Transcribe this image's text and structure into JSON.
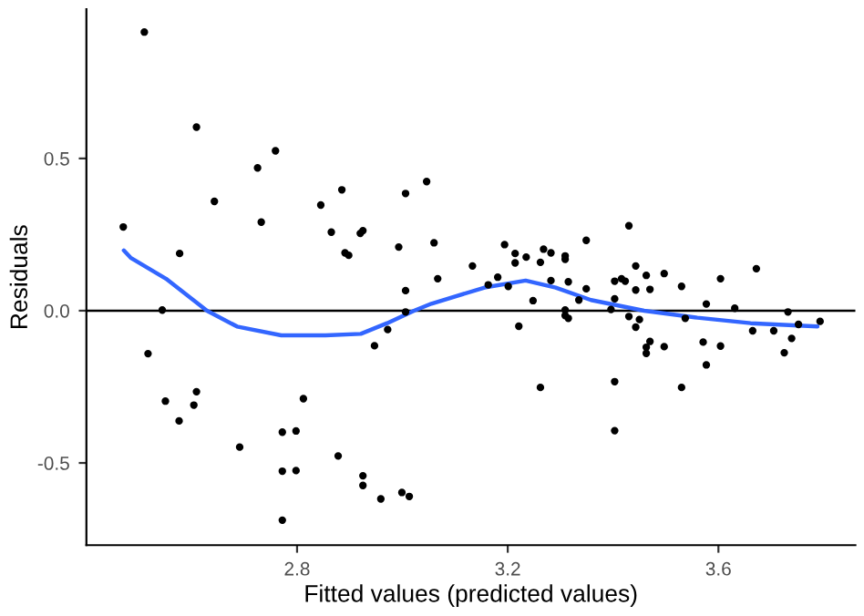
{
  "chart_data": {
    "type": "scatter",
    "xlabel": "Fitted values (predicted values)",
    "ylabel": "Residuals",
    "xlim": [
      2.4,
      3.86
    ],
    "ylim": [
      -0.77,
      0.99
    ],
    "xticks": [
      2.8,
      3.2,
      3.6
    ],
    "yticks": [
      {
        "value": -0.5,
        "label": "-0.5"
      },
      {
        "value": 0,
        "label": "0.0"
      },
      0.5
    ],
    "grid": false,
    "legend": false,
    "marker": "circle",
    "ref_lines": [
      {
        "axis": "y",
        "value": 0,
        "color": "#000000",
        "line_style": "solid"
      }
    ],
    "series": [
      {
        "color": "#000000",
        "x": [
          2.47,
          2.51,
          2.609,
          2.643,
          2.577,
          2.725,
          2.759,
          2.732,
          2.845,
          2.885,
          2.865,
          2.891,
          2.898,
          2.92,
          2.925,
          2.993,
          3.006,
          3.046,
          3.06,
          3.067,
          3.006,
          2.544,
          2.517,
          2.55,
          2.576,
          2.604,
          2.609,
          2.691,
          2.772,
          2.798,
          2.812,
          2.772,
          2.798,
          2.772,
          2.878,
          2.925,
          2.925,
          2.959,
          2.999,
          3.013,
          2.947,
          2.972,
          3.006,
          3.133,
          3.194,
          3.214,
          3.214,
          3.235,
          3.181,
          3.163,
          3.201,
          3.268,
          3.282,
          3.262,
          3.309,
          3.309,
          3.349,
          3.282,
          3.315,
          3.248,
          3.349,
          3.335,
          3.309,
          3.309,
          3.315,
          3.221,
          3.262,
          3.403,
          3.416,
          3.423,
          3.43,
          3.443,
          3.443,
          3.463,
          3.47,
          3.497,
          3.403,
          3.396,
          3.43,
          3.45,
          3.443,
          3.47,
          3.463,
          3.463,
          3.497,
          3.403,
          3.403,
          3.53,
          3.537,
          3.53,
          3.577,
          3.604,
          3.571,
          3.577,
          3.604,
          3.631,
          3.672,
          3.665,
          3.705,
          3.732,
          3.725,
          3.739,
          3.752,
          3.793
        ],
        "values": [
          0.275,
          0.915,
          0.603,
          0.359,
          0.188,
          0.469,
          0.525,
          0.291,
          0.347,
          0.397,
          0.258,
          0.19,
          0.182,
          0.254,
          0.263,
          0.209,
          0.385,
          0.424,
          0.223,
          0.105,
          0.066,
          0.002,
          -0.141,
          -0.297,
          -0.362,
          -0.31,
          -0.266,
          -0.448,
          -0.399,
          -0.395,
          -0.289,
          -0.527,
          -0.525,
          -0.688,
          -0.477,
          -0.542,
          -0.574,
          -0.618,
          -0.597,
          -0.61,
          -0.115,
          -0.062,
          -0.004,
          0.147,
          0.217,
          0.188,
          0.157,
          0.176,
          0.11,
          0.085,
          0.08,
          0.202,
          0.19,
          0.159,
          0.18,
          0.169,
          0.231,
          0.099,
          0.095,
          0.033,
          0.072,
          0.035,
          0.002,
          -0.016,
          -0.025,
          -0.051,
          -0.252,
          0.097,
          0.105,
          0.097,
          0.279,
          0.147,
          0.068,
          0.116,
          0.07,
          0.122,
          0.039,
          0.004,
          -0.019,
          -0.029,
          -0.054,
          -0.101,
          -0.12,
          -0.14,
          -0.118,
          -0.233,
          -0.394,
          0.08,
          -0.025,
          -0.252,
          0.022,
          0.105,
          -0.103,
          -0.178,
          -0.116,
          0.008,
          0.138,
          -0.066,
          -0.066,
          -0.004,
          -0.138,
          -0.091,
          -0.045,
          -0.035
        ]
      },
      {
        "type": "line",
        "color": "#3366ff",
        "marker": "none",
        "line_style": "solid",
        "x": [
          2.471,
          2.484,
          2.551,
          2.629,
          2.686,
          2.77,
          2.854,
          2.921,
          2.971,
          3.022,
          3.055,
          3.156,
          3.234,
          3.291,
          3.358,
          3.459,
          3.56,
          3.661,
          3.788
        ],
        "values": [
          0.198,
          0.174,
          0.105,
          0.0,
          -0.052,
          -0.081,
          -0.081,
          -0.076,
          -0.041,
          0.0,
          0.023,
          0.076,
          0.099,
          0.076,
          0.035,
          0.0,
          -0.023,
          -0.041,
          -0.052
        ]
      }
    ]
  }
}
